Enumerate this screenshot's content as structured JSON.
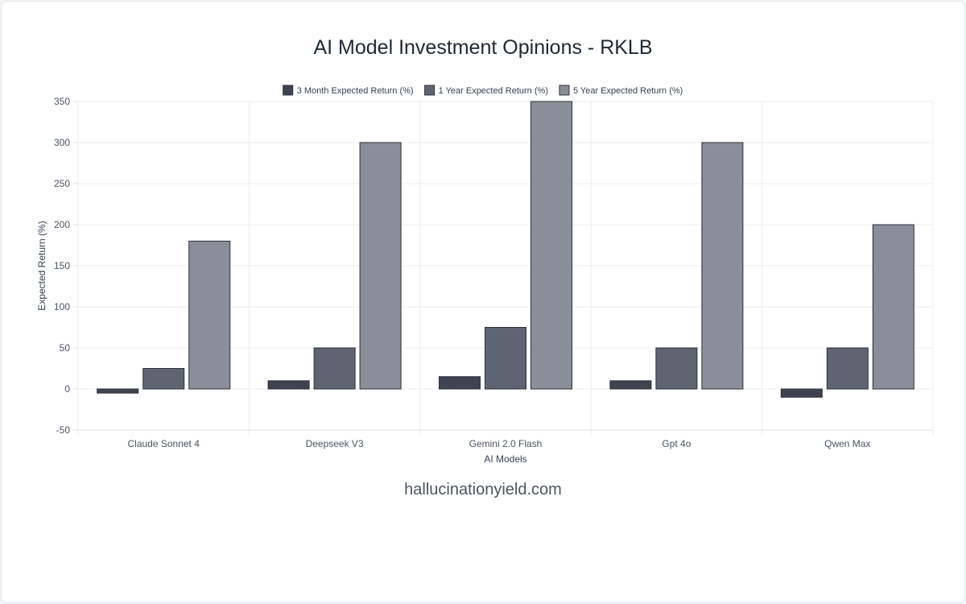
{
  "page": {
    "title": "AI Model Investment Opinions - RKLB",
    "footer": "hallucinationyield.com"
  },
  "chart_data": {
    "type": "bar",
    "title": "AI Model Investment Opinions - RKLB",
    "xlabel": "AI Models",
    "ylabel": "Expected Return (%)",
    "categories": [
      "Claude Sonnet 4",
      "Deepseek V3",
      "Gemini 2.0 Flash",
      "Gpt 4o",
      "Qwen Max"
    ],
    "series": [
      {
        "name": "3 Month Expected Return (%)",
        "values": [
          -5,
          10,
          15,
          10,
          -10
        ],
        "color": "#3f4350"
      },
      {
        "name": "1 Year Expected Return (%)",
        "values": [
          25,
          50,
          75,
          50,
          50
        ],
        "color": "#5f6472"
      },
      {
        "name": "5 Year Expected Return (%)",
        "values": [
          180,
          300,
          350,
          300,
          200
        ],
        "color": "#8a8e98"
      }
    ],
    "ylim": [
      -50,
      350
    ],
    "yticks": [
      -50,
      0,
      50,
      100,
      150,
      200,
      250,
      300,
      350
    ],
    "grid": true,
    "legend": "top-center"
  }
}
